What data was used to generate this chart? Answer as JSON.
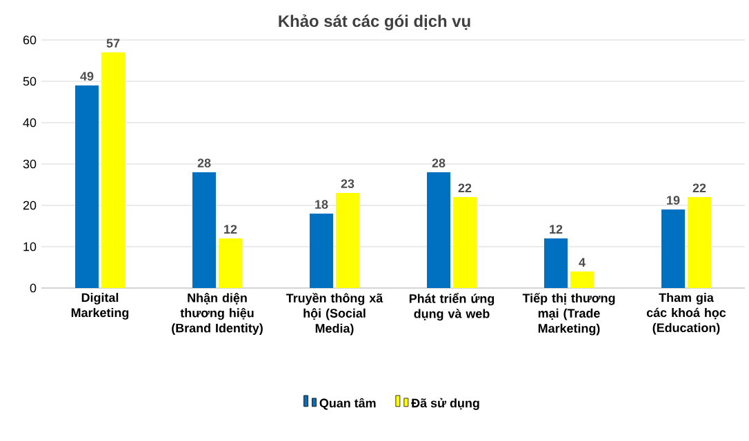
{
  "chart_data": {
    "type": "bar",
    "title": "Khảo sát các gói dịch vụ",
    "categories": [
      "Digital Marketing",
      "Nhận diện thương hiệu (Brand Identity)",
      "Truyền thông xã hội (Social Media)",
      "Phát triển ứng dụng và web",
      "Tiếp thị thương mại (Trade Marketing)",
      "Tham gia các khoá học (Education)"
    ],
    "series": [
      {
        "name": "Quan tâm",
        "color": "#0070c0",
        "values": [
          49,
          28,
          18,
          28,
          12,
          19
        ]
      },
      {
        "name": "Đã sử dụng",
        "color": "#ffff00",
        "values": [
          57,
          12,
          23,
          22,
          4,
          22
        ]
      }
    ],
    "ylim": [
      0,
      60
    ],
    "yticks": [
      0,
      10,
      20,
      30,
      40,
      50,
      60
    ],
    "grid": "y",
    "legend": "bottom",
    "data_labels": true
  }
}
